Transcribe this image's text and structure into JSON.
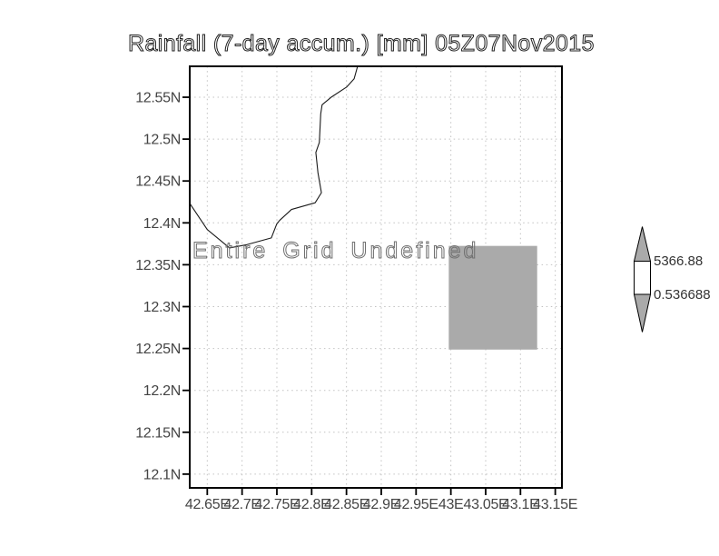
{
  "title": "Rainfall (7-day accum.) [mm] 05Z07Nov2015",
  "annotation": "Entire Grid Undefined",
  "colorbar": {
    "max_label": "5366.88",
    "min_label": "0.536688",
    "arrow_fill": "#aaaaaa",
    "bar_fill": "#ffffff"
  },
  "colors": {
    "border": "#000000",
    "grid": "#c2c2c2",
    "coastline": "#1a1a1a",
    "tick_text": "#444444",
    "shaded": "#aaaaaa"
  },
  "chart_data": {
    "type": "map",
    "title": "Rainfall (7-day accum.) [mm] 05Z07Nov2015",
    "xlabel": "",
    "ylabel": "",
    "grid": "dotted",
    "legend_position": "right-colorbar",
    "annotation": "Entire Grid Undefined",
    "xlim": [
      42.6248,
      43.1596
    ],
    "ylim": [
      12.0836,
      12.5869
    ],
    "x_ticks": {
      "values": [
        42.65,
        42.7,
        42.75,
        42.8,
        42.85,
        42.9,
        42.95,
        43.0,
        43.05,
        43.1,
        43.15
      ],
      "labels": [
        "42.65E",
        "42.7E",
        "42.75E",
        "42.8E",
        "42.85E",
        "42.9E",
        "42.95E",
        "43E",
        "43.05E",
        "43.1E",
        "43.15E"
      ]
    },
    "y_ticks": {
      "values": [
        12.55,
        12.5,
        12.45,
        12.4,
        12.35,
        12.3,
        12.25,
        12.2,
        12.15,
        12.1
      ],
      "labels": [
        "12.55N",
        "12.5N",
        "12.45N",
        "12.4N",
        "12.35N",
        "12.3N",
        "12.25N",
        "12.2N",
        "12.15N",
        "12.1N"
      ]
    },
    "shaded_region": {
      "lon": [
        42.997,
        43.124
      ],
      "lat": [
        12.2487,
        12.3725
      ],
      "color": "#aaaaaa"
    },
    "coastline_lonlat": [
      [
        42.866,
        12.587
      ],
      [
        42.861,
        12.572
      ],
      [
        42.85,
        12.562
      ],
      [
        42.828,
        12.55
      ],
      [
        42.815,
        12.541
      ],
      [
        42.813,
        12.53
      ],
      [
        42.811,
        12.496
      ],
      [
        42.806,
        12.484
      ],
      [
        42.809,
        12.46
      ],
      [
        42.814,
        12.436
      ],
      [
        42.805,
        12.424
      ],
      [
        42.771,
        12.416
      ],
      [
        42.754,
        12.403
      ],
      [
        42.75,
        12.399
      ],
      [
        42.742,
        12.382
      ],
      [
        42.707,
        12.374
      ],
      [
        42.682,
        12.37
      ],
      [
        42.65,
        12.392
      ],
      [
        42.625,
        12.423
      ]
    ],
    "colorbar": {
      "labels": [
        "5366.88",
        "0.536688"
      ],
      "segments": [
        {
          "shape": "up-arrow",
          "color": "#aaaaaa"
        },
        {
          "shape": "bar",
          "color": "#ffffff"
        },
        {
          "shape": "down-arrow",
          "color": "#aaaaaa"
        }
      ]
    }
  }
}
